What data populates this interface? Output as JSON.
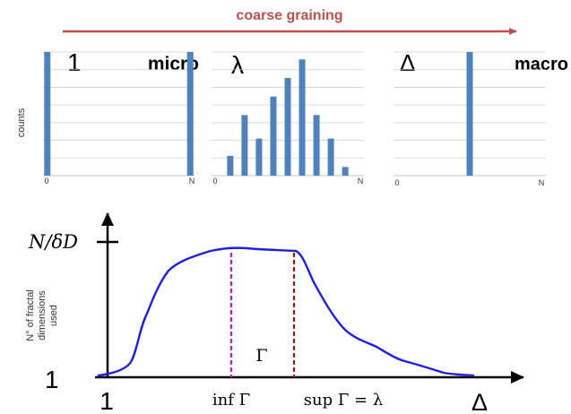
{
  "arrow_label": "coarse graining",
  "colors": {
    "arrow": "#c0504d",
    "bars": "#4f81bd",
    "grid": "#d0d0d0",
    "curve": "#1f1fe0",
    "inf_line": "#e600e6",
    "sup_line": "#cc0000",
    "axis": "#000000"
  },
  "panels": [
    {
      "id": "micro",
      "top_left_label": "1",
      "top_right_label": "micro",
      "y_axis_label": "counts",
      "x_tick_labels": [
        "0",
        "N"
      ],
      "chart_data": {
        "type": "bar",
        "bins": 11,
        "values": [
          1,
          0,
          0,
          0,
          0,
          0,
          0,
          0,
          0,
          0,
          1
        ],
        "ylim": [
          0,
          1
        ]
      }
    },
    {
      "id": "lambda",
      "top_left_label": "λ",
      "top_right_label": "",
      "y_axis_label": "",
      "x_tick_labels": [
        "0",
        "N"
      ],
      "chart_data": {
        "type": "bar",
        "bins": 11,
        "values": [
          0,
          0.16,
          0.49,
          0.3,
          0.64,
          0.79,
          0.94,
          0.49,
          0.3,
          0.07,
          0
        ],
        "ylim": [
          0,
          1
        ]
      }
    },
    {
      "id": "delta",
      "top_left_label": "Δ",
      "top_right_label": "macro",
      "y_axis_label": "",
      "x_tick_labels": [
        "0",
        "N"
      ],
      "chart_data": {
        "type": "bar",
        "bins": 11,
        "values": [
          0,
          0,
          0,
          0,
          0,
          1,
          0,
          0,
          0,
          0,
          0
        ],
        "ylim": [
          0,
          1
        ]
      }
    }
  ],
  "bottom_plot": {
    "y_top_label": "N/δD",
    "y_axis_label_lines": [
      "N° of fractal",
      "dimensions",
      "used"
    ],
    "y_bottom_label": "1",
    "x_left_label": "1",
    "x_inf_label": "inf Γ",
    "x_sup_label": "sup Γ = λ",
    "x_right_label": "Δ",
    "region_label": "Γ"
  }
}
